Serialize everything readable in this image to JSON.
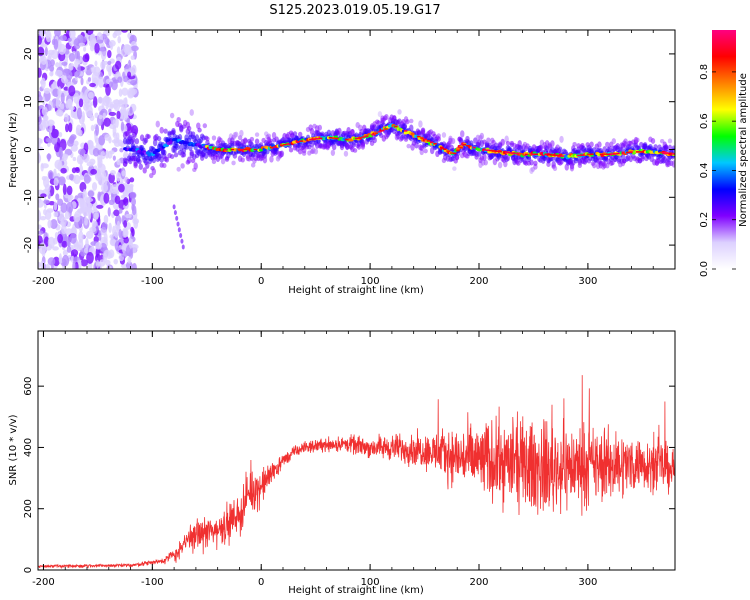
{
  "title": "S125.2023.019.05.19.G17",
  "chart_data": [
    {
      "type": "heatmap",
      "xlabel": "Height of straight line (km)",
      "ylabel": "Frequency (Hz)",
      "xlim": [
        -205,
        380
      ],
      "ylim": [
        -25,
        25
      ],
      "x_ticks": [
        -200,
        -100,
        0,
        100,
        200,
        300
      ],
      "y_ticks": [
        -20,
        -10,
        0,
        10,
        20
      ],
      "colorbar": {
        "label": "Normalized spectral amplitude",
        "range": [
          0,
          0.97
        ],
        "ticks": [
          0.0,
          0.2,
          0.4,
          0.6,
          0.8
        ],
        "colormap": [
          "#ffffff",
          "#dcd0ff",
          "#8000ff",
          "#0000ff",
          "#00c8ff",
          "#00ff00",
          "#ffff00",
          "#ff8000",
          "#ff0000",
          "#ff0080"
        ]
      },
      "ridge_x": [
        -120,
        -100,
        -80,
        -60,
        -40,
        -20,
        0,
        20,
        40,
        60,
        80,
        100,
        120,
        140,
        160,
        175,
        185,
        200,
        220,
        240,
        260,
        280,
        300,
        320,
        340,
        360,
        380
      ],
      "ridge_freq": [
        0,
        -1,
        2,
        1,
        0,
        0,
        0,
        1,
        2,
        2.5,
        2,
        3,
        5,
        3,
        1,
        -1,
        1,
        0,
        -0.5,
        -1,
        -1,
        -1.5,
        -1,
        -1,
        -0.5,
        -0.5,
        -1
      ]
    },
    {
      "type": "line",
      "xlabel": "Height of straight line (km)",
      "ylabel": "SNR (10 * v/v)",
      "xlim": [
        -205,
        380
      ],
      "ylim": [
        0,
        780
      ],
      "x_ticks": [
        -200,
        -100,
        0,
        100,
        200,
        300
      ],
      "y_ticks": [
        0,
        200,
        400,
        600
      ],
      "color": "#f03030",
      "envelope_x": [
        -205,
        -120,
        -90,
        -75,
        -65,
        -40,
        -20,
        -10,
        0,
        10,
        20,
        30,
        40,
        60,
        80,
        100,
        120,
        150,
        180,
        200,
        230,
        260,
        290,
        320,
        350,
        380
      ],
      "envelope_mean": [
        12,
        15,
        30,
        60,
        110,
        130,
        180,
        260,
        270,
        320,
        355,
        385,
        400,
        410,
        410,
        400,
        400,
        390,
        370,
        360,
        350,
        330,
        340,
        340,
        350,
        330
      ],
      "envelope_spread": [
        5,
        6,
        10,
        30,
        50,
        60,
        70,
        80,
        60,
        40,
        25,
        20,
        20,
        25,
        30,
        35,
        45,
        60,
        100,
        130,
        150,
        160,
        140,
        120,
        90,
        80
      ]
    }
  ]
}
